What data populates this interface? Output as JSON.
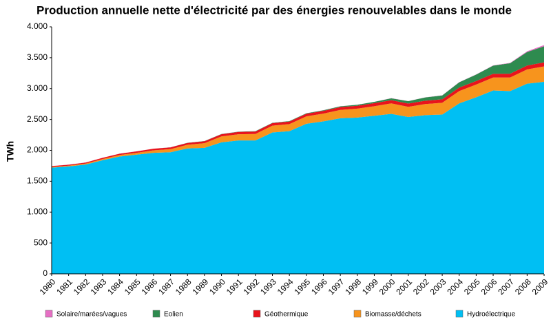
{
  "chart_data": {
    "type": "stacked-area",
    "title": "Production annuelle nette d'électricité par des énergies renouvelables dans le monde",
    "y_label": "TWh",
    "categories": [
      "1980",
      "1981",
      "1982",
      "1983",
      "1984",
      "1985",
      "1986",
      "1987",
      "1988",
      "1989",
      "1990",
      "1991",
      "1992",
      "1993",
      "1994",
      "1995",
      "1996",
      "1997",
      "1998",
      "1999",
      "2000",
      "2001",
      "2002",
      "2003",
      "2004",
      "2005",
      "2006",
      "2007",
      "2008",
      "2009"
    ],
    "series": [
      {
        "name": "Solaire/marées/vagues",
        "color": "#e66fc4",
        "values": [
          1,
          1,
          1,
          1,
          1,
          1,
          1,
          1,
          1,
          1,
          1,
          1,
          1,
          1,
          1,
          1,
          1,
          1,
          1,
          1,
          2,
          2,
          2,
          2,
          3,
          3,
          4,
          5,
          12,
          20
        ]
      },
      {
        "name": "Eolien",
        "color": "#2e8b4f",
        "values": [
          0,
          0,
          0,
          0,
          0,
          0,
          0,
          1,
          2,
          3,
          4,
          4,
          5,
          6,
          7,
          8,
          10,
          12,
          16,
          21,
          31,
          38,
          52,
          63,
          85,
          104,
          133,
          170,
          219,
          260
        ]
      },
      {
        "name": "Géothermique",
        "color": "#e8141c",
        "values": [
          15,
          16,
          17,
          19,
          21,
          23,
          26,
          28,
          30,
          32,
          36,
          38,
          40,
          40,
          41,
          42,
          44,
          46,
          47,
          49,
          52,
          53,
          54,
          56,
          57,
          58,
          59,
          61,
          63,
          65
        ]
      },
      {
        "name": "Biomasse/déchets",
        "color": "#f7941d",
        "values": [
          10,
          12,
          15,
          20,
          25,
          30,
          40,
          50,
          60,
          75,
          95,
          100,
          105,
          110,
          115,
          120,
          125,
          135,
          145,
          155,
          170,
          165,
          180,
          190,
          200,
          205,
          210,
          220,
          230,
          250
        ]
      },
      {
        "name": "Hydroélectrique",
        "color": "#00bff3",
        "values": [
          1720,
          1740,
          1770,
          1840,
          1900,
          1930,
          1960,
          1970,
          2030,
          2040,
          2130,
          2160,
          2160,
          2290,
          2310,
          2430,
          2470,
          2520,
          2530,
          2560,
          2590,
          2540,
          2570,
          2580,
          2760,
          2860,
          2970,
          2960,
          3080,
          3110
        ]
      }
    ],
    "ylim": [
      0,
      4000
    ],
    "yticks": [
      0,
      500,
      {
        "value": 1000,
        "label": "1.000"
      },
      {
        "value": 1500,
        "label": "1.500"
      },
      {
        "value": 2000,
        "label": "2.000"
      },
      {
        "value": 2500,
        "label": "2.500"
      },
      {
        "value": 3000,
        "label": "3.000"
      },
      {
        "value": 3500,
        "label": "3.500"
      },
      {
        "value": 4000,
        "label": "4.000"
      }
    ],
    "grid": false
  }
}
